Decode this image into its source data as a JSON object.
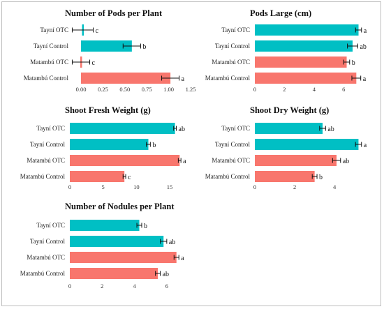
{
  "colors": {
    "otc_series": "#00bfc4",
    "control_series": "#f8766d",
    "error_bar": "#111111"
  },
  "chart_data": [
    {
      "type": "bar",
      "title": "Number of Pods per Plant",
      "categories": [
        "Tayní OTC",
        "Tayní Control",
        "Matambú OTC",
        "Matambú Control"
      ],
      "values": [
        0.02,
        0.58,
        0.0,
        1.02
      ],
      "errors": [
        0.12,
        0.1,
        0.1,
        0.1
      ],
      "significance": [
        "c",
        "b",
        "c",
        "a"
      ],
      "xlim": [
        0,
        1.25
      ],
      "ticks": [
        "0.00",
        "0.25",
        "0.50",
        "0.75",
        "1.00",
        "1.25"
      ]
    },
    {
      "type": "bar",
      "title": "Pods Large (cm)",
      "categories": [
        "Tayní OTC",
        "Tayní Control",
        "Matambú OTC",
        "Matambú Control"
      ],
      "values": [
        7.0,
        6.6,
        6.2,
        6.85
      ],
      "errors": [
        0.2,
        0.35,
        0.2,
        0.3
      ],
      "significance": [
        "a",
        "ab",
        "b",
        "a"
      ],
      "xlim": [
        0,
        7.4
      ],
      "ticks": [
        "0",
        "2",
        "4",
        "6"
      ]
    },
    {
      "type": "bar",
      "title": "Shoot Fresh Weight (g)",
      "categories": [
        "Tayní OTC",
        "Tayní Control",
        "Matambú OTC",
        "Matambú Control"
      ],
      "values": [
        15.8,
        11.8,
        16.5,
        8.2
      ],
      "errors": [
        0.2,
        0.3,
        0.2,
        0.2
      ],
      "significance": [
        "ab",
        "b",
        "a",
        "c"
      ],
      "xlim": [
        0,
        17.1
      ],
      "ticks": [
        "0",
        "5",
        "10",
        "15"
      ]
    },
    {
      "type": "bar",
      "title": "Shoot Dry Weight (g)",
      "categories": [
        "Tayní OTC",
        "Tayní Control",
        "Matambú OTC",
        "Matambú Control"
      ],
      "values": [
        3.4,
        5.2,
        4.1,
        3.0
      ],
      "errors": [
        0.15,
        0.15,
        0.2,
        0.12
      ],
      "significance": [
        "ab",
        "a",
        "ab",
        "b"
      ],
      "xlim": [
        0,
        5.5
      ],
      "ticks": [
        "0",
        "2",
        "4"
      ]
    },
    {
      "type": "bar",
      "title": "Number of Nodules per Plant",
      "categories": [
        "Tayní OTC",
        "Tayní Control",
        "Matambú OTC",
        "Matambú Control"
      ],
      "values": [
        4.3,
        5.8,
        6.6,
        5.45
      ],
      "errors": [
        0.15,
        0.2,
        0.15,
        0.15
      ],
      "significance": [
        "b",
        "ab",
        "a",
        "ab"
      ],
      "xlim": [
        0,
        7.0
      ],
      "ticks": [
        "0",
        "2",
        "4",
        "6"
      ]
    }
  ]
}
